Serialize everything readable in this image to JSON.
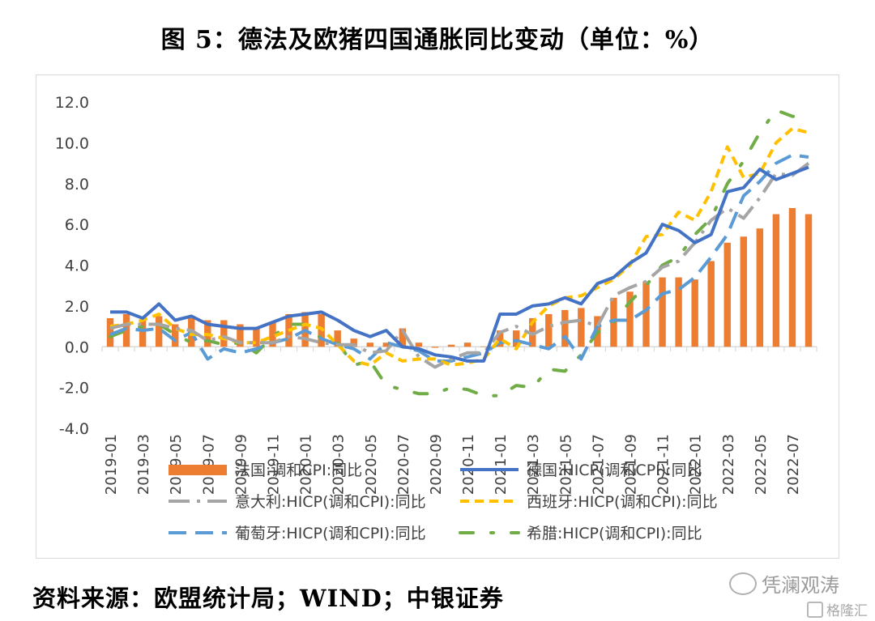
{
  "title": "图 5：德法及欧猪四国通胀同比变动（单位：%）",
  "source": "资料来源：欧盟统计局；WIND；中银证券",
  "watermark": "凭澜观涛",
  "watermark2": "格隆汇",
  "chart_data": {
    "type": "bar+line",
    "ylim": [
      -4.0,
      12.0
    ],
    "yticks": [
      "12.0",
      "10.0",
      "8.0",
      "6.0",
      "4.0",
      "2.0",
      "0.0",
      "-2.0",
      "-4.0"
    ],
    "ytick_values": [
      12,
      10,
      8,
      6,
      4,
      2,
      0,
      -2,
      -4
    ],
    "x_labels": [
      "2019-01",
      "2019-03",
      "2019-05",
      "2019-07",
      "2019-09",
      "2019-11",
      "2020-01",
      "2020-03",
      "2020-05",
      "2020-07",
      "2020-09",
      "2020-11",
      "2021-01",
      "2021-03",
      "2021-05",
      "2021-07",
      "2021-09",
      "2021-11",
      "2022-01",
      "2022-03",
      "2022-05",
      "2022-07"
    ],
    "months": [
      "2019-01",
      "2019-02",
      "2019-03",
      "2019-04",
      "2019-05",
      "2019-06",
      "2019-07",
      "2019-08",
      "2019-09",
      "2019-10",
      "2019-11",
      "2019-12",
      "2020-01",
      "2020-02",
      "2020-03",
      "2020-04",
      "2020-05",
      "2020-06",
      "2020-07",
      "2020-08",
      "2020-09",
      "2020-10",
      "2020-11",
      "2020-12",
      "2021-01",
      "2021-02",
      "2021-03",
      "2021-04",
      "2021-05",
      "2021-06",
      "2021-07",
      "2021-08",
      "2021-09",
      "2021-10",
      "2021-11",
      "2021-12",
      "2022-01",
      "2022-02",
      "2022-03",
      "2022-04",
      "2022-05",
      "2022-06",
      "2022-07",
      "2022-08"
    ],
    "colors": {
      "france": "#ed7d31",
      "germany": "#4472c4",
      "italy": "#a5a5a5",
      "spain": "#ffc000",
      "portugal": "#5b9bd5",
      "greece": "#70ad47",
      "axis": "#d9d9d9"
    },
    "series": [
      {
        "key": "france",
        "name": "法国:调和CPI:同比",
        "kind": "bar",
        "values": [
          1.4,
          1.6,
          1.3,
          1.5,
          1.1,
          1.4,
          1.3,
          1.3,
          1.1,
          0.9,
          1.2,
          1.6,
          1.7,
          1.6,
          0.8,
          0.4,
          0.2,
          0.2,
          0.9,
          0.2,
          -0.05,
          0.1,
          0.2,
          0.0,
          0.8,
          0.8,
          1.4,
          1.6,
          1.8,
          1.9,
          1.5,
          2.4,
          2.7,
          3.2,
          3.4,
          3.4,
          3.3,
          4.2,
          5.1,
          5.4,
          5.8,
          6.5,
          6.8,
          6.5
        ]
      },
      {
        "key": "germany",
        "name": "德国:HICP(调和CPI):同比",
        "kind": "line",
        "dash": "solid",
        "values": [
          1.7,
          1.7,
          1.4,
          2.1,
          1.3,
          1.5,
          1.1,
          1.0,
          0.9,
          0.9,
          1.2,
          1.5,
          1.6,
          1.7,
          1.3,
          0.8,
          0.5,
          0.8,
          0.0,
          -0.1,
          -0.4,
          -0.5,
          -0.7,
          -0.7,
          1.6,
          1.6,
          2.0,
          2.1,
          2.4,
          2.1,
          3.1,
          3.4,
          4.1,
          4.6,
          6.0,
          5.7,
          5.1,
          5.5,
          7.6,
          7.8,
          8.7,
          8.2,
          8.5,
          8.8
        ]
      },
      {
        "key": "italy",
        "name": "意大利:HICP(调和CPI):同比",
        "kind": "line",
        "dash": "longdashdot",
        "values": [
          0.9,
          1.1,
          1.1,
          1.1,
          0.9,
          0.8,
          0.3,
          0.5,
          0.2,
          0.2,
          0.2,
          0.5,
          0.4,
          0.2,
          0.1,
          0.1,
          -0.3,
          -0.2,
          0.8,
          -0.5,
          -1.0,
          -0.6,
          -0.3,
          -0.3,
          0.7,
          1.0,
          0.6,
          1.0,
          1.2,
          1.3,
          1.0,
          2.5,
          2.9,
          3.2,
          3.9,
          4.2,
          5.1,
          6.2,
          6.8,
          6.3,
          7.3,
          8.5,
          8.4,
          9.0
        ]
      },
      {
        "key": "spain",
        "name": "西班牙:HICP(调和CPI):同比",
        "kind": "line",
        "dash": "dashed",
        "values": [
          1.0,
          1.1,
          1.3,
          1.6,
          0.9,
          0.6,
          0.6,
          0.4,
          0.2,
          0.2,
          0.5,
          0.8,
          1.1,
          0.9,
          0.1,
          -0.7,
          -0.9,
          -0.3,
          -0.7,
          -0.6,
          -0.6,
          -0.9,
          -0.8,
          -0.6,
          0.4,
          -0.1,
          1.2,
          2.0,
          2.4,
          2.5,
          2.9,
          3.3,
          4.0,
          5.4,
          5.5,
          6.6,
          6.2,
          7.6,
          9.8,
          8.3,
          8.5,
          10.0,
          10.7,
          10.5
        ]
      },
      {
        "key": "portugal",
        "name": "葡萄牙:HICP(调和CPI):同比",
        "kind": "line",
        "dash": "longdash",
        "values": [
          0.6,
          0.9,
          0.8,
          0.9,
          0.3,
          0.7,
          -0.6,
          -0.1,
          -0.3,
          -0.1,
          0.2,
          0.4,
          0.8,
          0.4,
          0.1,
          -0.1,
          -0.6,
          0.2,
          0.0,
          -0.2,
          -0.7,
          -0.7,
          -0.5,
          -0.3,
          0.2,
          0.3,
          0.1,
          -0.1,
          0.5,
          -0.6,
          1.0,
          1.3,
          1.3,
          1.8,
          2.6,
          2.8,
          3.4,
          4.4,
          5.5,
          7.4,
          8.1,
          9.0,
          9.4,
          9.3
        ]
      },
      {
        "key": "greece",
        "name": "希腊:HICP(调和CPI):同比",
        "kind": "line",
        "dash": "dashdotsparse",
        "values": [
          0.5,
          0.8,
          1.0,
          1.1,
          0.6,
          0.2,
          0.3,
          0.1,
          0.2,
          -0.3,
          0.5,
          1.1,
          1.1,
          0.4,
          0.2,
          -0.9,
          -0.7,
          -1.9,
          -2.1,
          -2.3,
          -2.3,
          -2.0,
          -2.1,
          -2.4,
          -2.4,
          -1.9,
          -2.0,
          -1.1,
          -1.2,
          -0.4,
          0.7,
          1.2,
          2.2,
          3.0,
          4.0,
          4.4,
          5.5,
          6.3,
          8.0,
          9.1,
          10.5,
          11.6,
          11.3,
          11.2
        ]
      }
    ]
  }
}
